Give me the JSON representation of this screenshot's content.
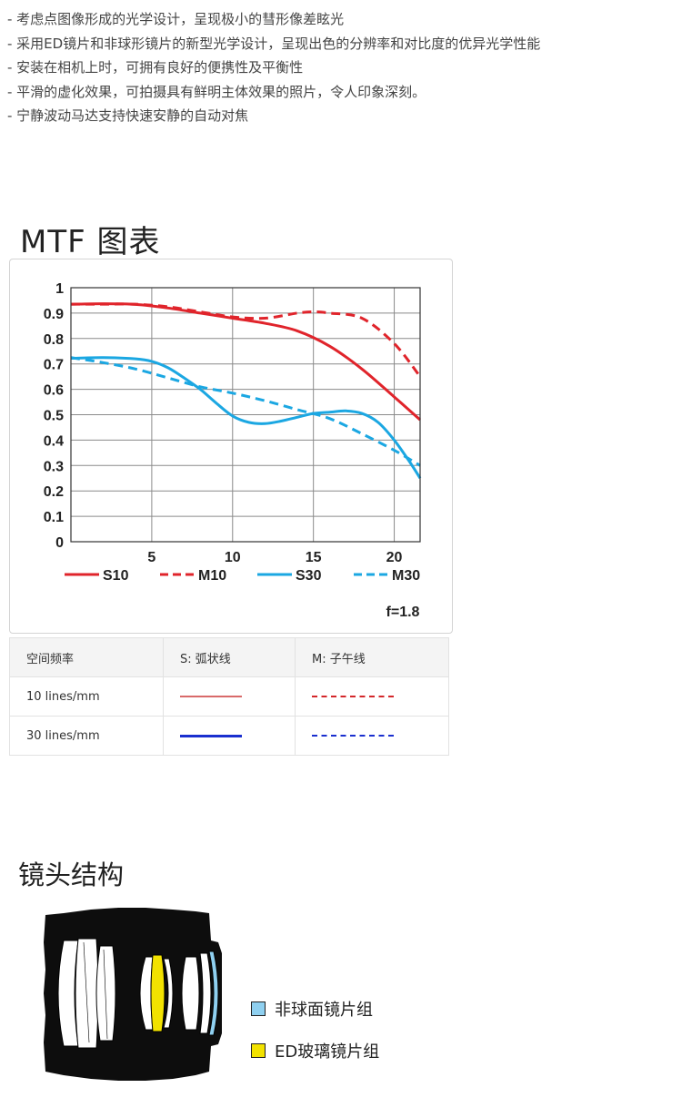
{
  "features": [
    "- 考虑点图像形成的光学设计，呈现极小的彗形像差眩光",
    "- 采用ED镜片和非球形镜片的新型光学设计，呈现出色的分辨率和对比度的优异光学性能",
    "- 安装在相机上时，可拥有良好的便携性及平衡性",
    "- 平滑的虚化效果，可拍摄具有鲜明主体效果的照片，令人印象深刻。",
    "- 宁静波动马达支持快速安静的自动对焦"
  ],
  "mtf_title": "MTF 图表",
  "chart_data": {
    "type": "line",
    "title": "",
    "xlabel": "",
    "ylabel": "",
    "xlim": [
      0,
      21.6
    ],
    "ylim": [
      0,
      1
    ],
    "x_ticks": [
      "5",
      "10",
      "15",
      "20"
    ],
    "x_tick_values": [
      5,
      10,
      15,
      20
    ],
    "y_ticks": [
      "0",
      "0.1",
      "0.2",
      "0.3",
      "0.4",
      "0.5",
      "0.6",
      "0.7",
      "0.8",
      "0.9",
      "1"
    ],
    "y_tick_values": [
      0,
      0.1,
      0.2,
      0.3,
      0.4,
      0.5,
      0.6,
      0.7,
      0.8,
      0.9,
      1
    ],
    "grid": true,
    "legend_position": "bottom",
    "annotation": "f=1.8",
    "series": [
      {
        "name": "S10",
        "color": "#e0242b",
        "dashed": false,
        "x": [
          0,
          2,
          4,
          6,
          8,
          10,
          12,
          14,
          16,
          18,
          20,
          21.6
        ],
        "y": [
          0.935,
          0.937,
          0.934,
          0.92,
          0.9,
          0.88,
          0.86,
          0.83,
          0.77,
          0.68,
          0.57,
          0.48
        ]
      },
      {
        "name": "M10",
        "color": "#e0242b",
        "dashed": true,
        "x": [
          0,
          2,
          4,
          6,
          8,
          10,
          12,
          14,
          15,
          16,
          18,
          20,
          21.6
        ],
        "y": [
          0.935,
          0.935,
          0.935,
          0.925,
          0.905,
          0.885,
          0.88,
          0.9,
          0.905,
          0.9,
          0.88,
          0.78,
          0.65
        ]
      },
      {
        "name": "S30",
        "color": "#1ba7e2",
        "dashed": false,
        "x": [
          0,
          2,
          4,
          5,
          6,
          7,
          8,
          9,
          10,
          11,
          12,
          13,
          14,
          15,
          16,
          17,
          18,
          19,
          20,
          21,
          21.6
        ],
        "y": [
          0.722,
          0.725,
          0.72,
          0.71,
          0.685,
          0.645,
          0.6,
          0.545,
          0.495,
          0.47,
          0.465,
          0.475,
          0.49,
          0.505,
          0.51,
          0.515,
          0.505,
          0.47,
          0.4,
          0.31,
          0.25
        ]
      },
      {
        "name": "M30",
        "color": "#1ba7e2",
        "dashed": true,
        "x": [
          0,
          2,
          4,
          6,
          8,
          10,
          12,
          14,
          16,
          18,
          20,
          21.6
        ],
        "y": [
          0.725,
          0.705,
          0.68,
          0.645,
          0.61,
          0.585,
          0.555,
          0.52,
          0.485,
          0.425,
          0.36,
          0.3
        ]
      }
    ]
  },
  "line_table": {
    "headers": [
      "空间频率",
      "S: 弧状线",
      "M: 子午线"
    ],
    "rows": [
      {
        "label": "10 lines/mm",
        "s_color": "#d96a6a",
        "m_color": "#d4272a"
      },
      {
        "label": "30 lines/mm",
        "s_color": "#1a2fcf",
        "m_color": "#1a2fcf"
      }
    ]
  },
  "lens_title": "镜头结构",
  "lens_legend": [
    {
      "label": "非球面镜片组",
      "color": "#8fd0f0"
    },
    {
      "label": "ED玻璃镜片组",
      "color": "#f2e200"
    }
  ]
}
